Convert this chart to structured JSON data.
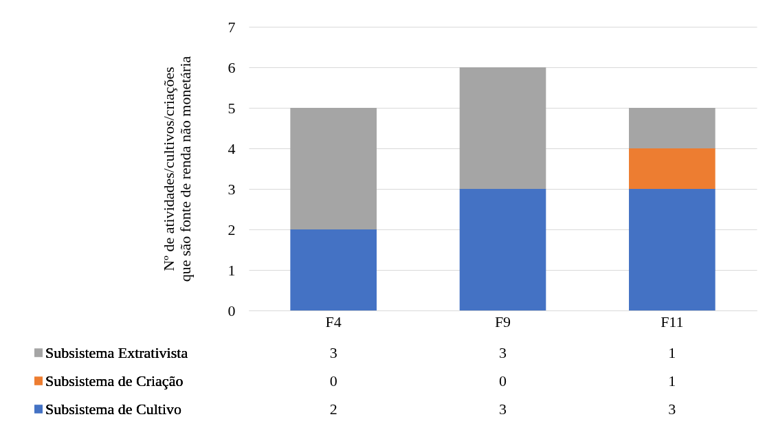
{
  "chart_data": {
    "type": "bar",
    "stacked": true,
    "ylabel": "Nº de atividades/cultivos/criações que são fonte de renda não monetária",
    "categories": [
      "F4",
      "F9",
      "F11"
    ],
    "series": [
      {
        "name": "Subsistema de Cultivo",
        "color": "#4472c4",
        "values": [
          2,
          3,
          3
        ]
      },
      {
        "name": "Subsistema de Criação",
        "color": "#ed7d31",
        "values": [
          0,
          0,
          1
        ]
      },
      {
        "name": "Subsistema Extrativista",
        "color": "#a5a5a5",
        "values": [
          3,
          3,
          1
        ]
      }
    ],
    "ylim": [
      0,
      7
    ],
    "yticks": [
      0,
      1,
      2,
      3,
      4,
      5,
      6,
      7
    ],
    "grid": "y",
    "legend": "bottom",
    "data_labels": true
  }
}
